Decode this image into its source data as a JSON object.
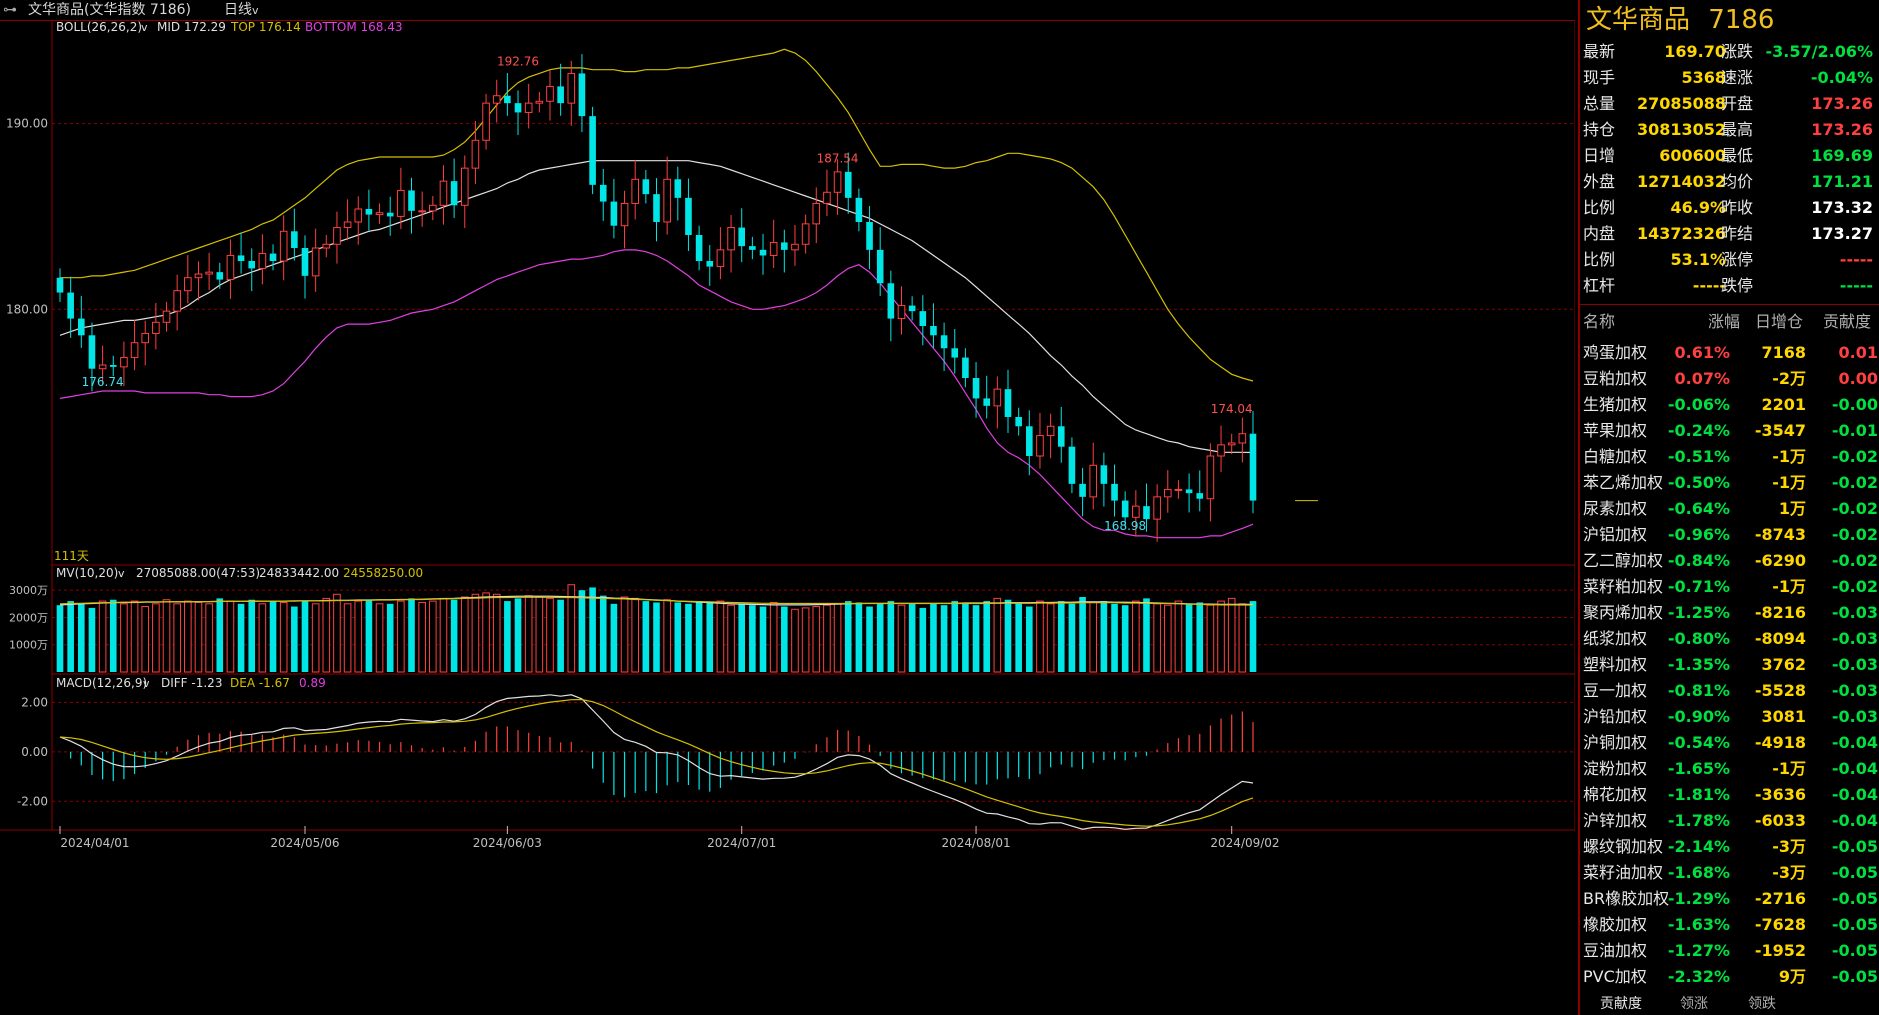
{
  "topbar": {
    "instrument": "文华商品(文华指数 7186)",
    "period": "日线",
    "period_arrow": "v"
  },
  "indicators": {
    "boll_name": "BOLL(26,26,2)",
    "boll_mid": "MID 172.29",
    "boll_top": "TOP 176.14",
    "boll_bottom": "BOTTOM 168.43",
    "bar_count": "111天",
    "mv_name": "MV(10,20)",
    "mv_values": "27085088.00(47:53)",
    "mv_ma10": "24833442.00",
    "mv_ma20": "24558250.00",
    "macd_name": "MACD(12,26,9)",
    "macd_diff": "DIFF -1.23",
    "macd_dea": "DEA -1.67",
    "macd_val": "0.89"
  },
  "axes": {
    "price_ticks": [
      "190.00",
      "180.00"
    ],
    "vol_ticks": [
      "3000万",
      "2000万",
      "1000万"
    ],
    "macd_ticks": [
      "2.00",
      "0.00",
      "-2.00"
    ],
    "dates": [
      "2024/04/01",
      "2024/05/06",
      "2024/06/03",
      "2024/07/01",
      "2024/08/01",
      "2024/09/02"
    ]
  },
  "chart_data": {
    "type": "candlestick",
    "ylim": [
      166.5,
      194.5
    ],
    "price_annotations": [
      {
        "label": "192.76",
        "bar": 43,
        "value": 192.76
      },
      {
        "label": "187.54",
        "bar": 73,
        "value": 187.54
      },
      {
        "label": "176.74",
        "bar": 4,
        "value": 176.74
      },
      {
        "label": "174.04",
        "bar": 110,
        "value": 174.04
      },
      {
        "label": "168.98",
        "bar": 100,
        "value": 168.98
      }
    ],
    "closes": [
      180.9,
      179.5,
      178.6,
      176.8,
      177.0,
      176.9,
      177.4,
      178.2,
      178.7,
      179.3,
      179.9,
      181.0,
      181.7,
      181.9,
      182.0,
      181.6,
      182.9,
      182.6,
      182.2,
      183.0,
      182.6,
      184.2,
      183.3,
      181.8,
      183.3,
      183.5,
      184.4,
      184.7,
      185.4,
      185.1,
      185.2,
      185.0,
      186.4,
      185.3,
      185.3,
      185.6,
      186.9,
      185.6,
      187.6,
      189.1,
      191.1,
      191.5,
      191.1,
      190.6,
      191.1,
      191.2,
      192.0,
      191.1,
      192.7,
      190.4,
      186.7,
      185.8,
      184.5,
      185.7,
      187.0,
      186.2,
      184.7,
      187.0,
      186.0,
      184.0,
      182.6,
      182.3,
      183.2,
      184.4,
      183.4,
      183.2,
      182.9,
      183.6,
      183.2,
      183.5,
      184.6,
      185.7,
      186.3,
      187.4,
      186.0,
      184.7,
      183.2,
      181.4,
      179.5,
      180.2,
      179.9,
      179.1,
      178.6,
      177.9,
      177.4,
      176.3,
      175.2,
      174.8,
      175.7,
      174.2,
      173.7,
      172.1,
      173.2,
      173.7,
      172.6,
      170.6,
      169.9,
      171.6,
      170.6,
      169.7,
      168.8,
      169.4,
      168.7,
      169.9,
      170.3,
      170.3,
      170.1,
      169.8,
      172.1,
      172.7,
      172.8,
      173.3,
      169.7
    ],
    "mid": [
      178.6,
      178.8,
      179.0,
      179.1,
      179.2,
      179.3,
      179.4,
      179.4,
      179.5,
      179.6,
      179.7,
      179.9,
      180.2,
      180.6,
      180.9,
      181.3,
      181.6,
      181.8,
      182.0,
      182.2,
      182.4,
      182.6,
      182.8,
      183.0,
      183.2,
      183.4,
      183.6,
      183.8,
      184.0,
      184.2,
      184.3,
      184.5,
      184.7,
      184.9,
      185.1,
      185.3,
      185.5,
      185.7,
      185.9,
      186.1,
      186.3,
      186.5,
      186.8,
      187.0,
      187.3,
      187.5,
      187.6,
      187.7,
      187.8,
      187.9,
      188.0,
      188.0,
      188.0,
      188.0,
      188.0,
      188.0,
      188.0,
      188.0,
      188.0,
      188.0,
      187.9,
      187.8,
      187.7,
      187.5,
      187.3,
      187.1,
      186.9,
      186.7,
      186.5,
      186.3,
      186.1,
      185.9,
      185.7,
      185.5,
      185.3,
      185.1,
      184.9,
      184.6,
      184.3,
      184.0,
      183.7,
      183.3,
      182.9,
      182.5,
      182.1,
      181.7,
      181.2,
      180.7,
      180.2,
      179.7,
      179.2,
      178.7,
      178.1,
      177.5,
      177.0,
      176.4,
      175.9,
      175.3,
      174.8,
      174.3,
      173.8,
      173.5,
      173.3,
      173.1,
      172.9,
      172.8,
      172.6,
      172.5,
      172.4,
      172.3,
      172.3,
      172.3,
      172.29
    ],
    "top": [
      181.7,
      181.7,
      181.7,
      181.8,
      181.8,
      181.9,
      182.0,
      182.1,
      182.3,
      182.5,
      182.7,
      182.9,
      183.1,
      183.3,
      183.5,
      183.7,
      183.9,
      184.1,
      184.3,
      184.6,
      184.8,
      185.2,
      185.6,
      186.0,
      186.5,
      187.0,
      187.5,
      187.8,
      188.0,
      188.1,
      188.2,
      188.2,
      188.2,
      188.2,
      188.2,
      188.2,
      188.3,
      188.6,
      189.0,
      189.6,
      190.3,
      191.0,
      191.7,
      192.2,
      192.5,
      192.7,
      192.9,
      193.0,
      193.0,
      193.0,
      192.9,
      192.9,
      192.9,
      192.8,
      192.8,
      192.9,
      192.9,
      192.9,
      193.0,
      193.0,
      193.1,
      193.2,
      193.3,
      193.4,
      193.5,
      193.6,
      193.7,
      193.8,
      194.0,
      193.8,
      193.4,
      192.8,
      192.1,
      191.4,
      190.6,
      189.6,
      188.6,
      187.7,
      187.7,
      187.8,
      187.8,
      187.8,
      187.7,
      187.6,
      187.6,
      187.7,
      187.9,
      188.0,
      188.2,
      188.4,
      188.4,
      188.3,
      188.2,
      188.1,
      187.9,
      187.6,
      187.1,
      186.6,
      185.9,
      185.0,
      184.0,
      183.0,
      182.0,
      181.0,
      180.0,
      179.2,
      178.5,
      177.9,
      177.3,
      176.9,
      176.5,
      176.3,
      176.14
    ],
    "bottom": [
      175.2,
      175.3,
      175.4,
      175.5,
      175.6,
      175.6,
      175.6,
      175.6,
      175.5,
      175.5,
      175.5,
      175.5,
      175.5,
      175.5,
      175.4,
      175.4,
      175.3,
      175.3,
      175.3,
      175.4,
      175.6,
      176.0,
      176.6,
      177.2,
      177.9,
      178.5,
      179.0,
      179.2,
      179.2,
      179.2,
      179.3,
      179.4,
      179.6,
      179.8,
      179.9,
      180.0,
      180.2,
      180.4,
      180.7,
      181.0,
      181.3,
      181.6,
      181.8,
      182.0,
      182.2,
      182.4,
      182.5,
      182.6,
      182.7,
      182.7,
      182.8,
      182.9,
      183.1,
      183.2,
      183.2,
      183.1,
      182.9,
      182.6,
      182.2,
      181.8,
      181.3,
      181.0,
      180.7,
      180.4,
      180.2,
      180.0,
      180.0,
      180.1,
      180.2,
      180.4,
      180.6,
      180.9,
      181.3,
      181.8,
      182.2,
      182.4,
      182.0,
      181.4,
      180.7,
      180.0,
      179.3,
      178.6,
      177.9,
      177.2,
      176.4,
      175.5,
      174.6,
      173.6,
      172.8,
      172.3,
      172.0,
      171.6,
      171.1,
      170.5,
      169.9,
      169.3,
      168.7,
      168.3,
      168.1,
      168.1,
      167.9,
      167.8,
      167.8,
      167.7,
      167.7,
      167.7,
      167.7,
      167.7,
      167.8,
      167.8,
      168.0,
      168.2,
      168.43
    ],
    "volumes": [
      24.5,
      26,
      25,
      23.5,
      26,
      26.5,
      25,
      26,
      24,
      25,
      26.5,
      25,
      26,
      25.5,
      25,
      27,
      26,
      25,
      26.5,
      25,
      26,
      25.5,
      24,
      26,
      25,
      27,
      28.5,
      25,
      26,
      26.5,
      25,
      25,
      26,
      27,
      25.5,
      26,
      27,
      26.5,
      27.5,
      28.5,
      29,
      28.5,
      26,
      27,
      28,
      27.5,
      27,
      26.5,
      32,
      30,
      31,
      28,
      25,
      27.5,
      27,
      26,
      25.5,
      26.5,
      25.5,
      25,
      26,
      25.5,
      26,
      24.5,
      25,
      24.5,
      24,
      25.5,
      24,
      23,
      23.5,
      24,
      24.5,
      25,
      26,
      25.5,
      24,
      25,
      26,
      24.5,
      25,
      23.5,
      25,
      24.5,
      26,
      25,
      24.5,
      26,
      27,
      26.5,
      25.5,
      24,
      26,
      25,
      26,
      25,
      27.5,
      25.5,
      26,
      25,
      24.5,
      26,
      27,
      25,
      24.5,
      26,
      25,
      25.5,
      24.5,
      26,
      27,
      25,
      26,
      25,
      27.09
    ],
    "mv10": [
      24.6,
      24.8,
      25.0,
      25.1,
      25.3,
      25.4,
      25.5,
      25.5,
      25.6,
      25.6,
      25.7,
      25.7,
      25.7,
      25.8,
      25.8,
      25.9,
      25.9,
      25.9,
      26.0,
      26.0,
      26.0,
      26.0,
      26.1,
      26.1,
      26.1,
      26.2,
      26.3,
      26.3,
      26.4,
      26.4,
      26.5,
      26.5,
      26.6,
      26.6,
      26.7,
      26.8,
      26.9,
      27.0,
      27.2,
      27.3,
      27.5,
      27.6,
      27.7,
      27.8,
      27.8,
      27.8,
      27.8,
      27.7,
      27.6,
      27.5,
      27.4,
      27.3,
      27.1,
      27.0,
      26.8,
      26.6,
      26.4,
      26.2,
      26.0,
      25.8,
      25.6,
      25.4,
      25.2,
      25.0,
      24.9,
      24.8,
      24.7,
      24.6,
      24.6,
      24.6,
      24.6,
      24.7,
      24.8,
      24.9,
      25.0,
      25.1,
      25.2,
      25.2,
      25.2,
      25.2,
      25.2,
      25.2,
      25.2,
      25.2,
      25.2,
      25.3,
      25.3,
      25.3,
      25.3,
      25.4,
      25.4,
      25.4,
      25.5,
      25.5,
      25.6,
      25.6,
      25.7,
      25.7,
      25.7,
      25.6,
      25.6,
      25.5,
      25.4,
      25.3,
      25.2,
      25.1,
      25.0,
      24.9,
      24.9,
      24.8,
      24.8,
      24.8,
      24.83
    ],
    "mv20": [
      25.0,
      25.1,
      25.2,
      25.3,
      25.4,
      25.5,
      25.6,
      25.6,
      25.7,
      25.7,
      25.7,
      25.8,
      25.8,
      25.8,
      25.8,
      25.9,
      25.9,
      25.9,
      25.9,
      26.0,
      26.0,
      26.0,
      26.0,
      26.1,
      26.1,
      26.1,
      26.2,
      26.2,
      26.3,
      26.3,
      26.4,
      26.4,
      26.5,
      26.6,
      26.6,
      26.7,
      26.8,
      26.9,
      27.0,
      27.1,
      27.2,
      27.3,
      27.3,
      27.4,
      27.4,
      27.4,
      27.4,
      27.3,
      27.3,
      27.2,
      27.1,
      27.0,
      26.9,
      26.8,
      26.6,
      26.5,
      26.3,
      26.2,
      26.0,
      25.9,
      25.8,
      25.7,
      25.6,
      25.5,
      25.4,
      25.3,
      25.2,
      25.2,
      25.1,
      25.1,
      25.1,
      25.1,
      25.1,
      25.1,
      25.1,
      25.1,
      25.1,
      25.1,
      25.1,
      25.1,
      25.1,
      25.1,
      25.1,
      25.1,
      25.1,
      25.1,
      25.1,
      25.1,
      25.2,
      25.2,
      25.2,
      25.2,
      25.3,
      25.3,
      25.3,
      25.3,
      25.4,
      25.4,
      25.4,
      25.4,
      25.3,
      25.3,
      25.2,
      25.1,
      25.1,
      25.0,
      24.9,
      24.8,
      24.7,
      24.6,
      24.6,
      24.56,
      24.56
    ],
    "vol_ylim": [
      0,
      33
    ],
    "macd_ylim": [
      -3.0,
      2.5
    ],
    "diff_start": 0.6
  },
  "panel": {
    "title": "文华商品",
    "code": "7186",
    "quote_rows": [
      {
        "l1": "最新",
        "v1": "169.70",
        "c1": "yel",
        "l2": "涨跌",
        "v2": "-3.57/2.06%",
        "c2": "grn"
      },
      {
        "l1": "现手",
        "v1": "5368",
        "c1": "yel",
        "l2": "速涨",
        "v2": "-0.04%",
        "c2": "grn"
      },
      {
        "l1": "总量",
        "v1": "27085088",
        "c1": "yel",
        "l2": "开盘",
        "v2": "173.26",
        "c2": "red"
      },
      {
        "l1": "持仓",
        "v1": "30813052",
        "c1": "yel",
        "l2": "最高",
        "v2": "173.26",
        "c2": "red"
      },
      {
        "l1": "日增",
        "v1": "600600",
        "c1": "yel",
        "l2": "最低",
        "v2": "169.69",
        "c2": "grn"
      },
      {
        "l1": "外盘",
        "v1": "12714032",
        "c1": "yel",
        "l2": "均价",
        "v2": "171.21",
        "c2": "grn"
      },
      {
        "l1": "比例",
        "v1": "46.9%",
        "c1": "yel",
        "l2": "昨收",
        "v2": "173.32",
        "c2": "wht"
      },
      {
        "l1": "内盘",
        "v1": "14372326",
        "c1": "yel",
        "l2": "昨结",
        "v2": "173.27",
        "c2": "wht"
      },
      {
        "l1": "比例",
        "v1": "53.1%",
        "c1": "yel",
        "l2": "涨停",
        "v2": "-----",
        "c2": "red"
      },
      {
        "l1": "杠杆",
        "v1": "-----",
        "c1": "yel",
        "l2": "跌停",
        "v2": "-----",
        "c2": "grn"
      }
    ],
    "headers": [
      "名称",
      "涨幅",
      "日增仓",
      "贡献度"
    ],
    "rows": [
      {
        "name": "鸡蛋加权",
        "pct": "0.61%",
        "pc": "red",
        "oi": "7168",
        "contrib": "0.01",
        "cc": "red"
      },
      {
        "name": "豆粕加权",
        "pct": "0.07%",
        "pc": "red",
        "oi": "-2万",
        "contrib": "0.00",
        "cc": "red"
      },
      {
        "name": "生猪加权",
        "pct": "-0.06%",
        "pc": "grn",
        "oi": "2201",
        "contrib": "-0.00",
        "cc": "grn"
      },
      {
        "name": "苹果加权",
        "pct": "-0.24%",
        "pc": "grn",
        "oi": "-3547",
        "contrib": "-0.01",
        "cc": "grn"
      },
      {
        "name": "白糖加权",
        "pct": "-0.51%",
        "pc": "grn",
        "oi": "-1万",
        "contrib": "-0.02",
        "cc": "grn"
      },
      {
        "name": "苯乙烯加权",
        "pct": "-0.50%",
        "pc": "grn",
        "oi": "-1万",
        "contrib": "-0.02",
        "cc": "grn"
      },
      {
        "name": "尿素加权",
        "pct": "-0.64%",
        "pc": "grn",
        "oi": "1万",
        "contrib": "-0.02",
        "cc": "grn"
      },
      {
        "name": "沪铝加权",
        "pct": "-0.96%",
        "pc": "grn",
        "oi": "-8743",
        "contrib": "-0.02",
        "cc": "grn"
      },
      {
        "name": "乙二醇加权",
        "pct": "-0.84%",
        "pc": "grn",
        "oi": "-6290",
        "contrib": "-0.02",
        "cc": "grn"
      },
      {
        "name": "菜籽粕加权",
        "pct": "-0.71%",
        "pc": "grn",
        "oi": "-1万",
        "contrib": "-0.02",
        "cc": "grn"
      },
      {
        "name": "聚丙烯加权",
        "pct": "-1.25%",
        "pc": "grn",
        "oi": "-8216",
        "contrib": "-0.03",
        "cc": "grn"
      },
      {
        "name": "纸浆加权",
        "pct": "-0.80%",
        "pc": "grn",
        "oi": "-8094",
        "contrib": "-0.03",
        "cc": "grn"
      },
      {
        "name": "塑料加权",
        "pct": "-1.35%",
        "pc": "grn",
        "oi": "3762",
        "contrib": "-0.03",
        "cc": "grn"
      },
      {
        "name": "豆一加权",
        "pct": "-0.81%",
        "pc": "grn",
        "oi": "-5528",
        "contrib": "-0.03",
        "cc": "grn"
      },
      {
        "name": "沪铅加权",
        "pct": "-0.90%",
        "pc": "grn",
        "oi": "3081",
        "contrib": "-0.03",
        "cc": "grn"
      },
      {
        "name": "沪铜加权",
        "pct": "-0.54%",
        "pc": "grn",
        "oi": "-4918",
        "contrib": "-0.04",
        "cc": "grn"
      },
      {
        "name": "淀粉加权",
        "pct": "-1.65%",
        "pc": "grn",
        "oi": "-1万",
        "contrib": "-0.04",
        "cc": "grn"
      },
      {
        "name": "棉花加权",
        "pct": "-1.81%",
        "pc": "grn",
        "oi": "-3636",
        "contrib": "-0.04",
        "cc": "grn"
      },
      {
        "name": "沪锌加权",
        "pct": "-1.78%",
        "pc": "grn",
        "oi": "-6033",
        "contrib": "-0.04",
        "cc": "grn"
      },
      {
        "name": "螺纹钢加权",
        "pct": "-2.14%",
        "pc": "grn",
        "oi": "-3万",
        "contrib": "-0.05",
        "cc": "grn"
      },
      {
        "name": "菜籽油加权",
        "pct": "-1.68%",
        "pc": "grn",
        "oi": "-3万",
        "contrib": "-0.05",
        "cc": "grn"
      },
      {
        "name": "BR橡胶加权",
        "pct": "-1.29%",
        "pc": "grn",
        "oi": "-2716",
        "contrib": "-0.05",
        "cc": "grn"
      },
      {
        "name": "橡胶加权",
        "pct": "-1.63%",
        "pc": "grn",
        "oi": "-7628",
        "contrib": "-0.05",
        "cc": "grn"
      },
      {
        "name": "豆油加权",
        "pct": "-1.27%",
        "pc": "grn",
        "oi": "-1952",
        "contrib": "-0.05",
        "cc": "grn"
      },
      {
        "name": "PVC加权",
        "pct": "-2.32%",
        "pc": "grn",
        "oi": "9万",
        "contrib": "-0.05",
        "cc": "grn"
      }
    ],
    "tabs": [
      "贡献度",
      "领涨",
      "领跌"
    ]
  },
  "colors": {
    "up": "#ff4040",
    "down": "#00e5e5",
    "mid_line": "#e0e0e0",
    "top_line": "#d4c000",
    "bottom_line": "#e040e0",
    "grid": "#8b0000",
    "title": "#f0c020"
  }
}
